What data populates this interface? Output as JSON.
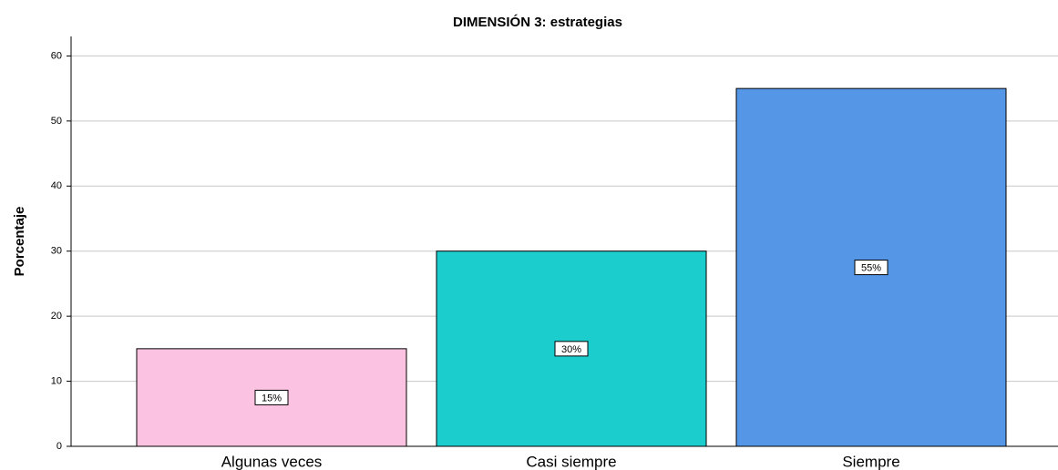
{
  "chart_data": {
    "type": "bar",
    "title": "DIMENSIÓN 3: estrategias",
    "y_label": "Porcentaje",
    "categories": [
      "Algunas veces",
      "Casi siempre",
      "Siempre"
    ],
    "values": [
      15,
      30,
      55
    ],
    "value_labels": [
      "15%",
      "30%",
      "55%"
    ],
    "colors": [
      "#fbc3e1",
      "#1ccdcd",
      "#5596e6"
    ],
    "ylim": [
      0,
      63
    ],
    "yticks": [
      0,
      10,
      20,
      30,
      40,
      50,
      60
    ],
    "grid": true
  }
}
